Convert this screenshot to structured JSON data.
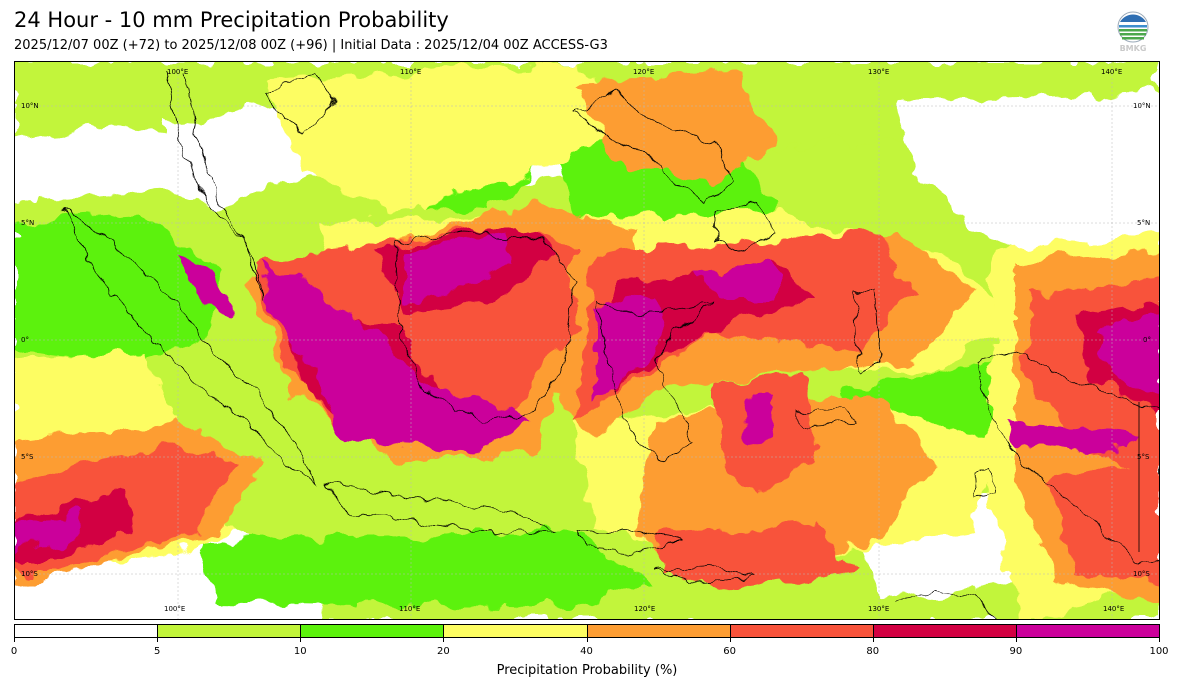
{
  "title": "24 Hour - 10 mm Precipitation Probability",
  "subtitle": "2025/12/07 00Z (+72) to 2025/12/08 00Z (+96) | Initial Data : 2025/12/04 00Z ACCESS-G3",
  "logo_text": "BMKG",
  "map": {
    "lon_labels": [
      "100°E",
      "110°E",
      "120°E",
      "130°E",
      "140°E"
    ],
    "lat_labels": [
      "10°N",
      "5°N",
      "0°",
      "5°S",
      "10°S"
    ]
  },
  "colorbar": {
    "label": "Precipitation Probability (%)",
    "ticks": [
      "0",
      "5",
      "10",
      "20",
      "40",
      "60",
      "80",
      "90",
      "100"
    ],
    "colors": [
      "#ffffff",
      "#c2f53a",
      "#5cf20c",
      "#fdfd62",
      "#fd9d33",
      "#f8533b",
      "#d20042",
      "#cb009b"
    ]
  }
}
